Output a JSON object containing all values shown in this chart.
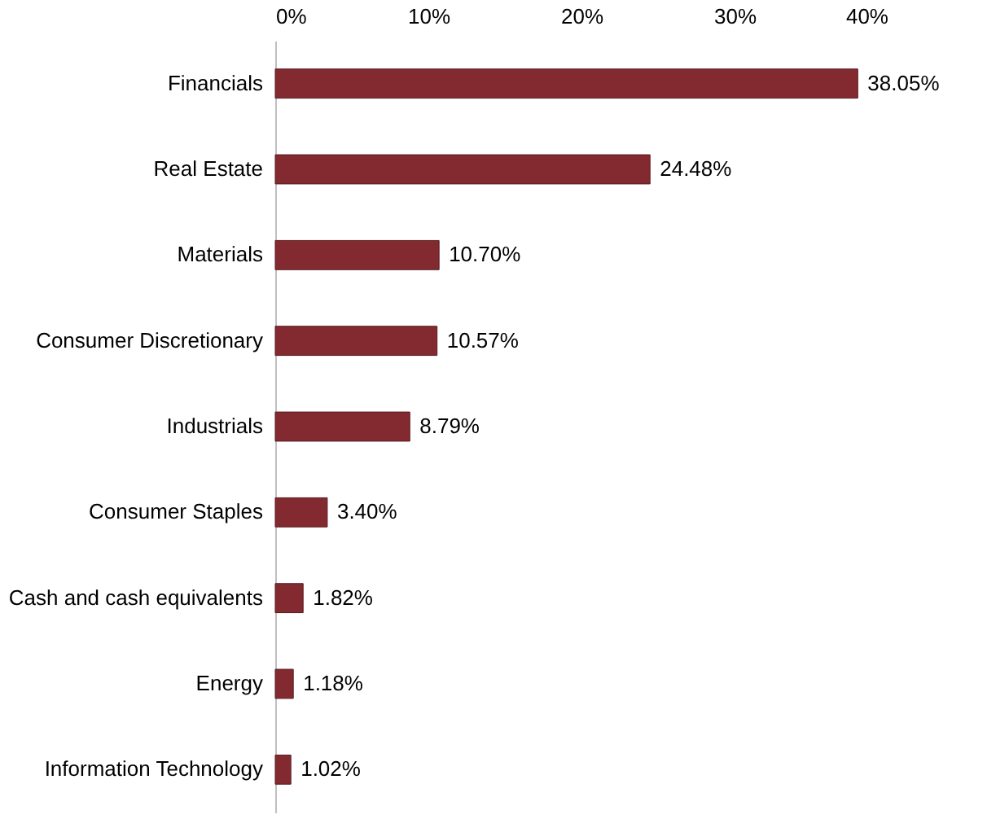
{
  "chart_data": {
    "type": "bar",
    "orientation": "horizontal",
    "categories": [
      "Financials",
      "Real Estate",
      "Materials",
      "Consumer Discretionary",
      "Industrials",
      "Consumer Staples",
      "Cash and cash equivalents",
      "Energy",
      "Information Technology"
    ],
    "values": [
      38.05,
      24.48,
      10.7,
      10.57,
      8.79,
      3.4,
      1.82,
      1.18,
      1.02
    ],
    "value_labels": [
      "38.05%",
      "24.48%",
      "10.70%",
      "10.57%",
      "8.79%",
      "3.40%",
      "1.82%",
      "1.18%",
      "1.02%"
    ],
    "color": "#832a31",
    "xlim": [
      0,
      40
    ],
    "xticks": [
      {
        "value": 0,
        "label": "0%"
      },
      {
        "value": 10,
        "label": "10%"
      },
      {
        "value": 20,
        "label": "20%"
      },
      {
        "value": 30,
        "label": "30%"
      },
      {
        "value": 40,
        "label": "40%"
      }
    ],
    "grid": false
  }
}
